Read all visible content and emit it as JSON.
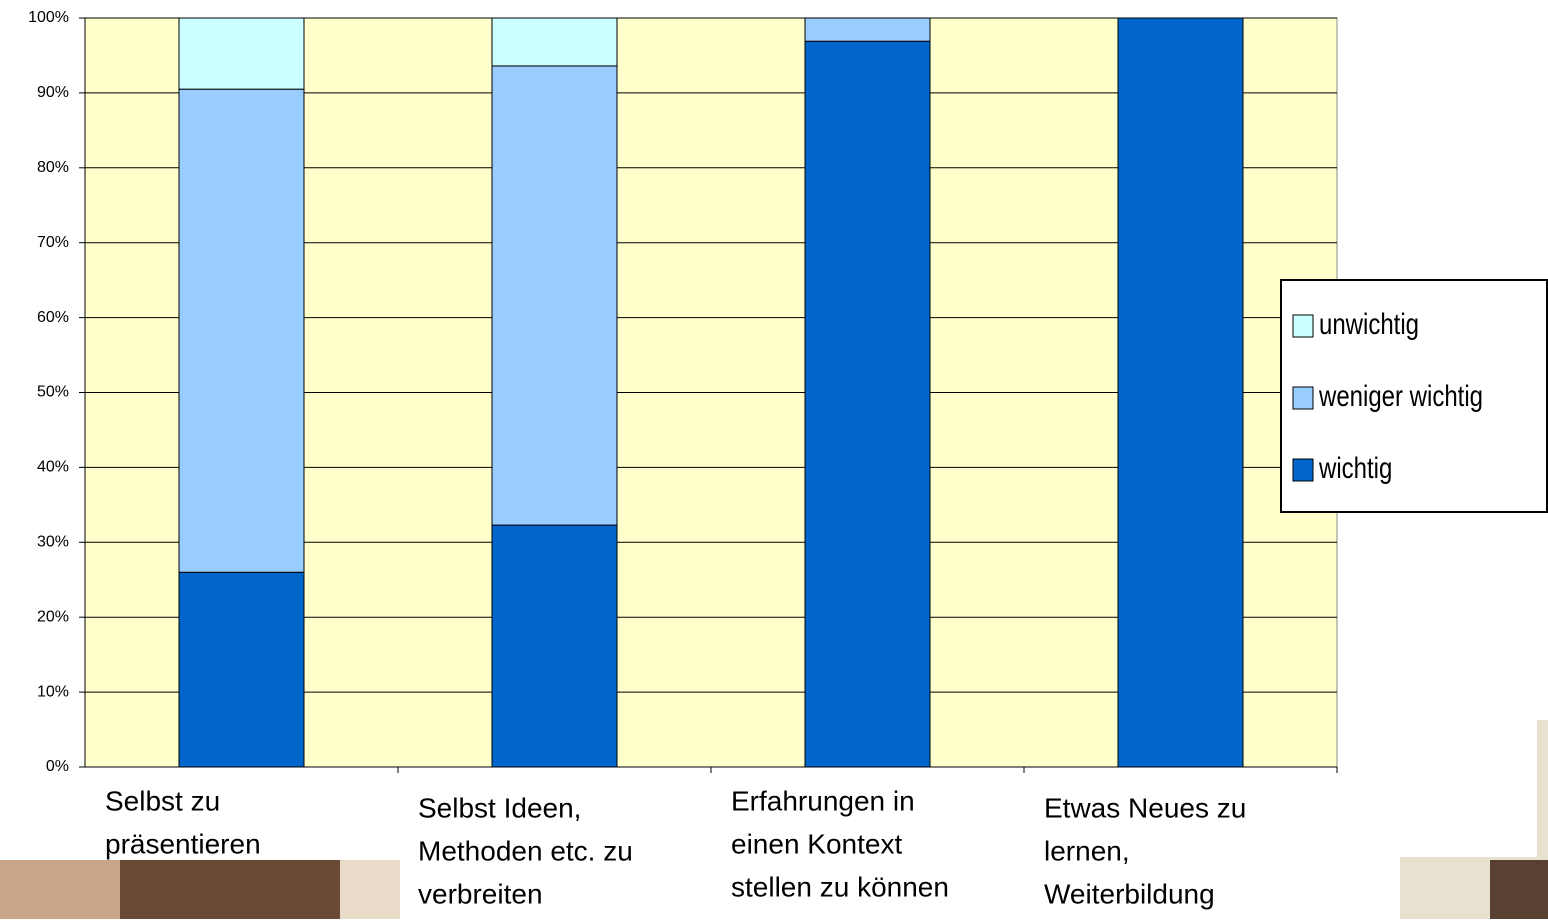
{
  "chart_data": {
    "type": "stacked_bar_percent",
    "categories": [
      [
        "Selbst zu",
        "präsentieren"
      ],
      [
        "Selbst Ideen,",
        "Methoden etc. zu",
        "verbreiten"
      ],
      [
        "Erfahrungen in",
        "einen Kontext",
        "stellen zu können"
      ],
      [
        "Etwas Neues zu",
        "lernen,",
        "Weiterbildung"
      ]
    ],
    "series": [
      {
        "name": "wichtig",
        "color": "#0066cc",
        "values": [
          26,
          32.3,
          96.9,
          100
        ]
      },
      {
        "name": "weniger wichtig",
        "color": "#99ccff",
        "values": [
          64.5,
          61.3,
          3.1,
          0
        ]
      },
      {
        "name": "unwichtig",
        "color": "#ccffff",
        "values": [
          9.5,
          6.4,
          0,
          0
        ]
      }
    ],
    "ylim": [
      0,
      100
    ],
    "yticks": [
      {
        "value": 0,
        "label": "0%"
      },
      {
        "value": 10,
        "label": "10%"
      },
      {
        "value": 20,
        "label": "20%"
      },
      {
        "value": 30,
        "label": "30%"
      },
      {
        "value": 40,
        "label": "40%"
      },
      {
        "value": 50,
        "label": "50%"
      },
      {
        "value": 60,
        "label": "60%"
      },
      {
        "value": 70,
        "label": "70%"
      },
      {
        "value": 80,
        "label": "80%"
      },
      {
        "value": 90,
        "label": "90%"
      },
      {
        "value": 100,
        "label": "100%"
      }
    ],
    "grid": true,
    "legend": "right",
    "background": "#ffffcc"
  }
}
